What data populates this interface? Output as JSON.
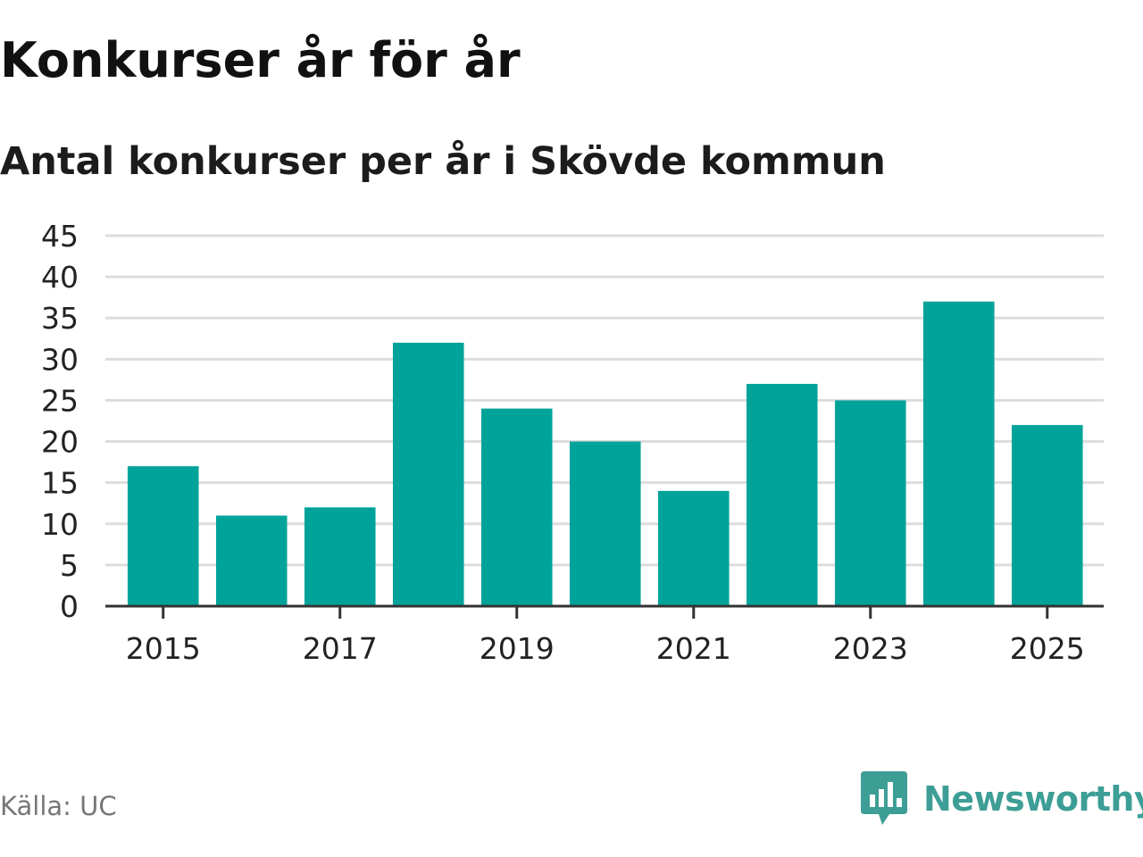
{
  "chart_data": {
    "type": "bar",
    "title": "Konkurser år för år",
    "subtitle": "Antal konkurser per år i Skövde kommun",
    "categories": [
      "2015",
      "2016",
      "2017",
      "2018",
      "2019",
      "2020",
      "2021",
      "2022",
      "2023",
      "2024",
      "2025"
    ],
    "values": [
      17,
      11,
      12,
      32,
      24,
      20,
      14,
      27,
      25,
      37,
      22
    ],
    "x_tick_labels": [
      "2015",
      "2017",
      "2019",
      "2021",
      "2023",
      "2025"
    ],
    "y_ticks": [
      0,
      5,
      10,
      15,
      20,
      25,
      30,
      35,
      40,
      45
    ],
    "ylim": [
      0,
      45
    ],
    "xlabel": "",
    "ylabel": "",
    "grid": true,
    "bar_color": "#00a39a"
  },
  "footer": {
    "source": "Källa: UC",
    "brand": "Newsworthy"
  },
  "colors": {
    "bar": "#00a39a",
    "brand": "#3d9e96",
    "grid": "#dddddd",
    "axis": "#333333"
  },
  "icons": {
    "brand_logo": "bar-chart-speech-bubble-icon"
  }
}
